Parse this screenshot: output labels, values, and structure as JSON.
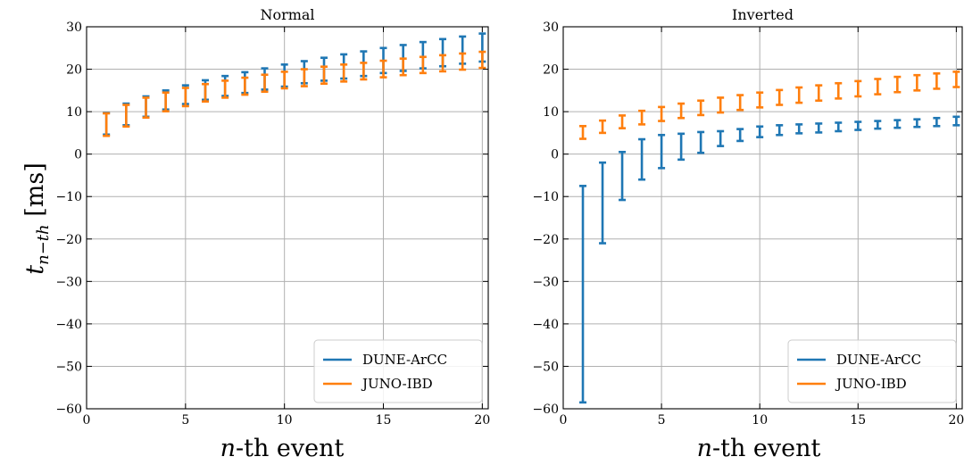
{
  "ylabel_html": "t",
  "ylabel_sub": "n−th",
  "ylabel_unit": "[ms]",
  "xlabel_italic": "n",
  "xlabel_rest": "-th event",
  "chart_data": [
    {
      "type": "errorbar",
      "title": "Normal",
      "xlim": [
        0,
        20.3
      ],
      "ylim": [
        -60,
        30
      ],
      "xticks": [
        0,
        5,
        10,
        15,
        20
      ],
      "yticks": [
        -60,
        -50,
        -40,
        -30,
        -20,
        -10,
        0,
        10,
        20,
        30
      ],
      "legend_position": "lower-right",
      "grid": true,
      "series": [
        {
          "name": "DUNE-ArCC",
          "color": "#1f77b4",
          "x": [
            1,
            2,
            3,
            4,
            5,
            6,
            7,
            8,
            9,
            10,
            11,
            12,
            13,
            14,
            15,
            16,
            17,
            18,
            19,
            20
          ],
          "low": [
            4.6,
            6.8,
            8.8,
            10.5,
            11.8,
            12.8,
            13.7,
            14.4,
            15.2,
            15.9,
            16.7,
            17.3,
            17.8,
            18.4,
            19.1,
            19.6,
            20.2,
            20.7,
            21.3,
            21.8
          ],
          "high": [
            9.7,
            11.9,
            13.6,
            15.0,
            16.2,
            17.4,
            18.4,
            19.3,
            20.2,
            21.1,
            21.9,
            22.7,
            23.5,
            24.2,
            25.0,
            25.7,
            26.4,
            27.1,
            27.7,
            28.4
          ]
        },
        {
          "name": "JUNO-IBD",
          "color": "#ff7f0e",
          "x": [
            1,
            2,
            3,
            4,
            5,
            6,
            7,
            8,
            9,
            10,
            11,
            12,
            13,
            14,
            15,
            16,
            17,
            18,
            19,
            20
          ],
          "low": [
            4.3,
            6.5,
            8.6,
            10.1,
            11.3,
            12.4,
            13.3,
            14.0,
            14.7,
            15.5,
            16.0,
            16.6,
            17.1,
            17.6,
            18.1,
            18.6,
            19.1,
            19.5,
            19.9,
            20.3
          ],
          "high": [
            9.6,
            11.6,
            13.3,
            14.5,
            15.6,
            16.5,
            17.3,
            18.0,
            18.7,
            19.4,
            20.0,
            20.6,
            21.1,
            21.5,
            22.0,
            22.5,
            22.9,
            23.3,
            23.7,
            24.1
          ]
        }
      ]
    },
    {
      "type": "errorbar",
      "title": "Inverted",
      "xlim": [
        0,
        20.3
      ],
      "ylim": [
        -60,
        30
      ],
      "xticks": [
        0,
        5,
        10,
        15,
        20
      ],
      "yticks": [
        -60,
        -50,
        -40,
        -30,
        -20,
        -10,
        0,
        10,
        20,
        30
      ],
      "legend_position": "lower-right",
      "grid": true,
      "series": [
        {
          "name": "DUNE-ArCC",
          "color": "#1f77b4",
          "x": [
            1,
            2,
            3,
            4,
            5,
            6,
            7,
            8,
            9,
            10,
            11,
            12,
            13,
            14,
            15,
            16,
            17,
            18,
            19,
            20
          ],
          "low": [
            -58.5,
            -21.0,
            -10.8,
            -6.0,
            -3.3,
            -1.3,
            0.3,
            1.9,
            3.1,
            4.0,
            4.5,
            4.9,
            5.1,
            5.4,
            5.7,
            6.0,
            6.2,
            6.4,
            6.6,
            6.8
          ],
          "high": [
            -7.5,
            -2.0,
            0.5,
            3.5,
            4.5,
            4.8,
            5.2,
            5.4,
            5.9,
            6.5,
            6.8,
            7.0,
            7.2,
            7.4,
            7.6,
            7.8,
            8.0,
            8.2,
            8.5,
            8.8
          ]
        },
        {
          "name": "JUNO-IBD",
          "color": "#ff7f0e",
          "x": [
            1,
            2,
            3,
            4,
            5,
            6,
            7,
            8,
            9,
            10,
            11,
            12,
            13,
            14,
            15,
            16,
            17,
            18,
            19,
            20
          ],
          "low": [
            3.6,
            5.0,
            6.1,
            7.0,
            7.8,
            8.5,
            9.2,
            9.8,
            10.4,
            11.0,
            11.6,
            12.1,
            12.6,
            13.1,
            13.6,
            14.1,
            14.6,
            15.0,
            15.4,
            15.8
          ],
          "high": [
            6.6,
            7.9,
            9.1,
            10.2,
            11.1,
            11.9,
            12.6,
            13.3,
            13.9,
            14.5,
            15.1,
            15.7,
            16.2,
            16.7,
            17.2,
            17.7,
            18.2,
            18.6,
            19.0,
            19.4
          ]
        }
      ]
    }
  ]
}
